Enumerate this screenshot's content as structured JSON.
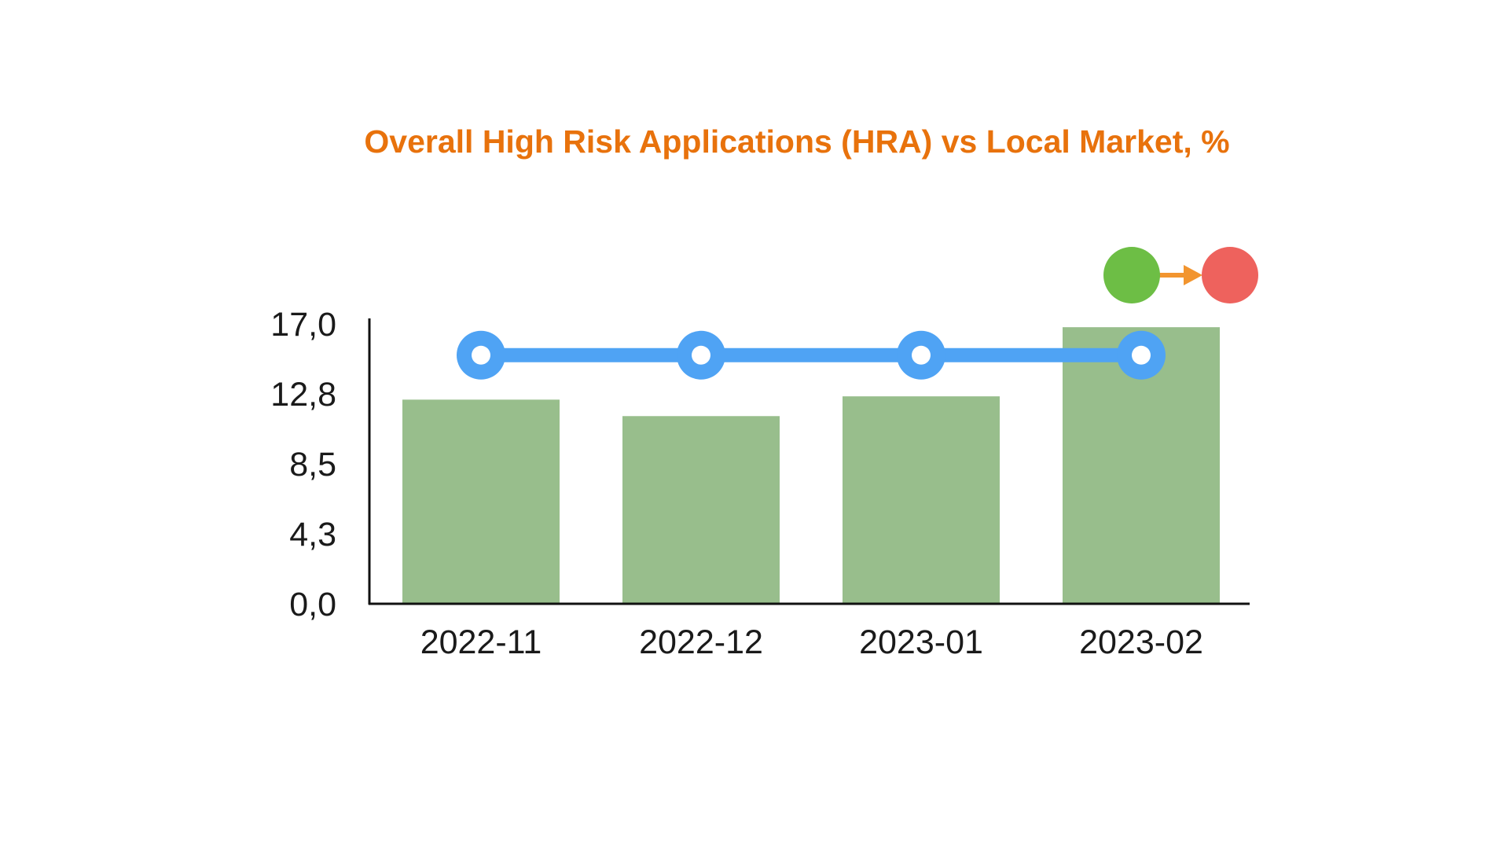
{
  "colors": {
    "title": "#E8720C",
    "bar": "#98BE8C",
    "line": "#4FA3F4",
    "marker_fill": "#FFFFFF",
    "axis": "#111111",
    "status_from": "#6DBE45",
    "status_to": "#EE625D",
    "status_arrow": "#F2952F"
  },
  "status_indicator": {
    "from_icon": "green-circle-icon",
    "arrow_icon": "arrow-right-icon",
    "to_icon": "red-circle-icon"
  },
  "chart_data": {
    "type": "bar",
    "title": "Overall High Risk Applications (HRA) vs Local Market, %",
    "categories": [
      "2022-11",
      "2022-12",
      "2023-01",
      "2023-02"
    ],
    "series": [
      {
        "type": "bar",
        "values": [
          12.4,
          11.4,
          12.6,
          16.8
        ]
      },
      {
        "type": "line",
        "values": [
          15.1,
          15.1,
          15.1,
          15.1
        ]
      }
    ],
    "yticks": [
      "0,0",
      "4,3",
      "8,5",
      "12,8",
      "17,0"
    ],
    "ylim": [
      0,
      17
    ],
    "xlabel": "",
    "ylabel": "",
    "grid": false
  }
}
